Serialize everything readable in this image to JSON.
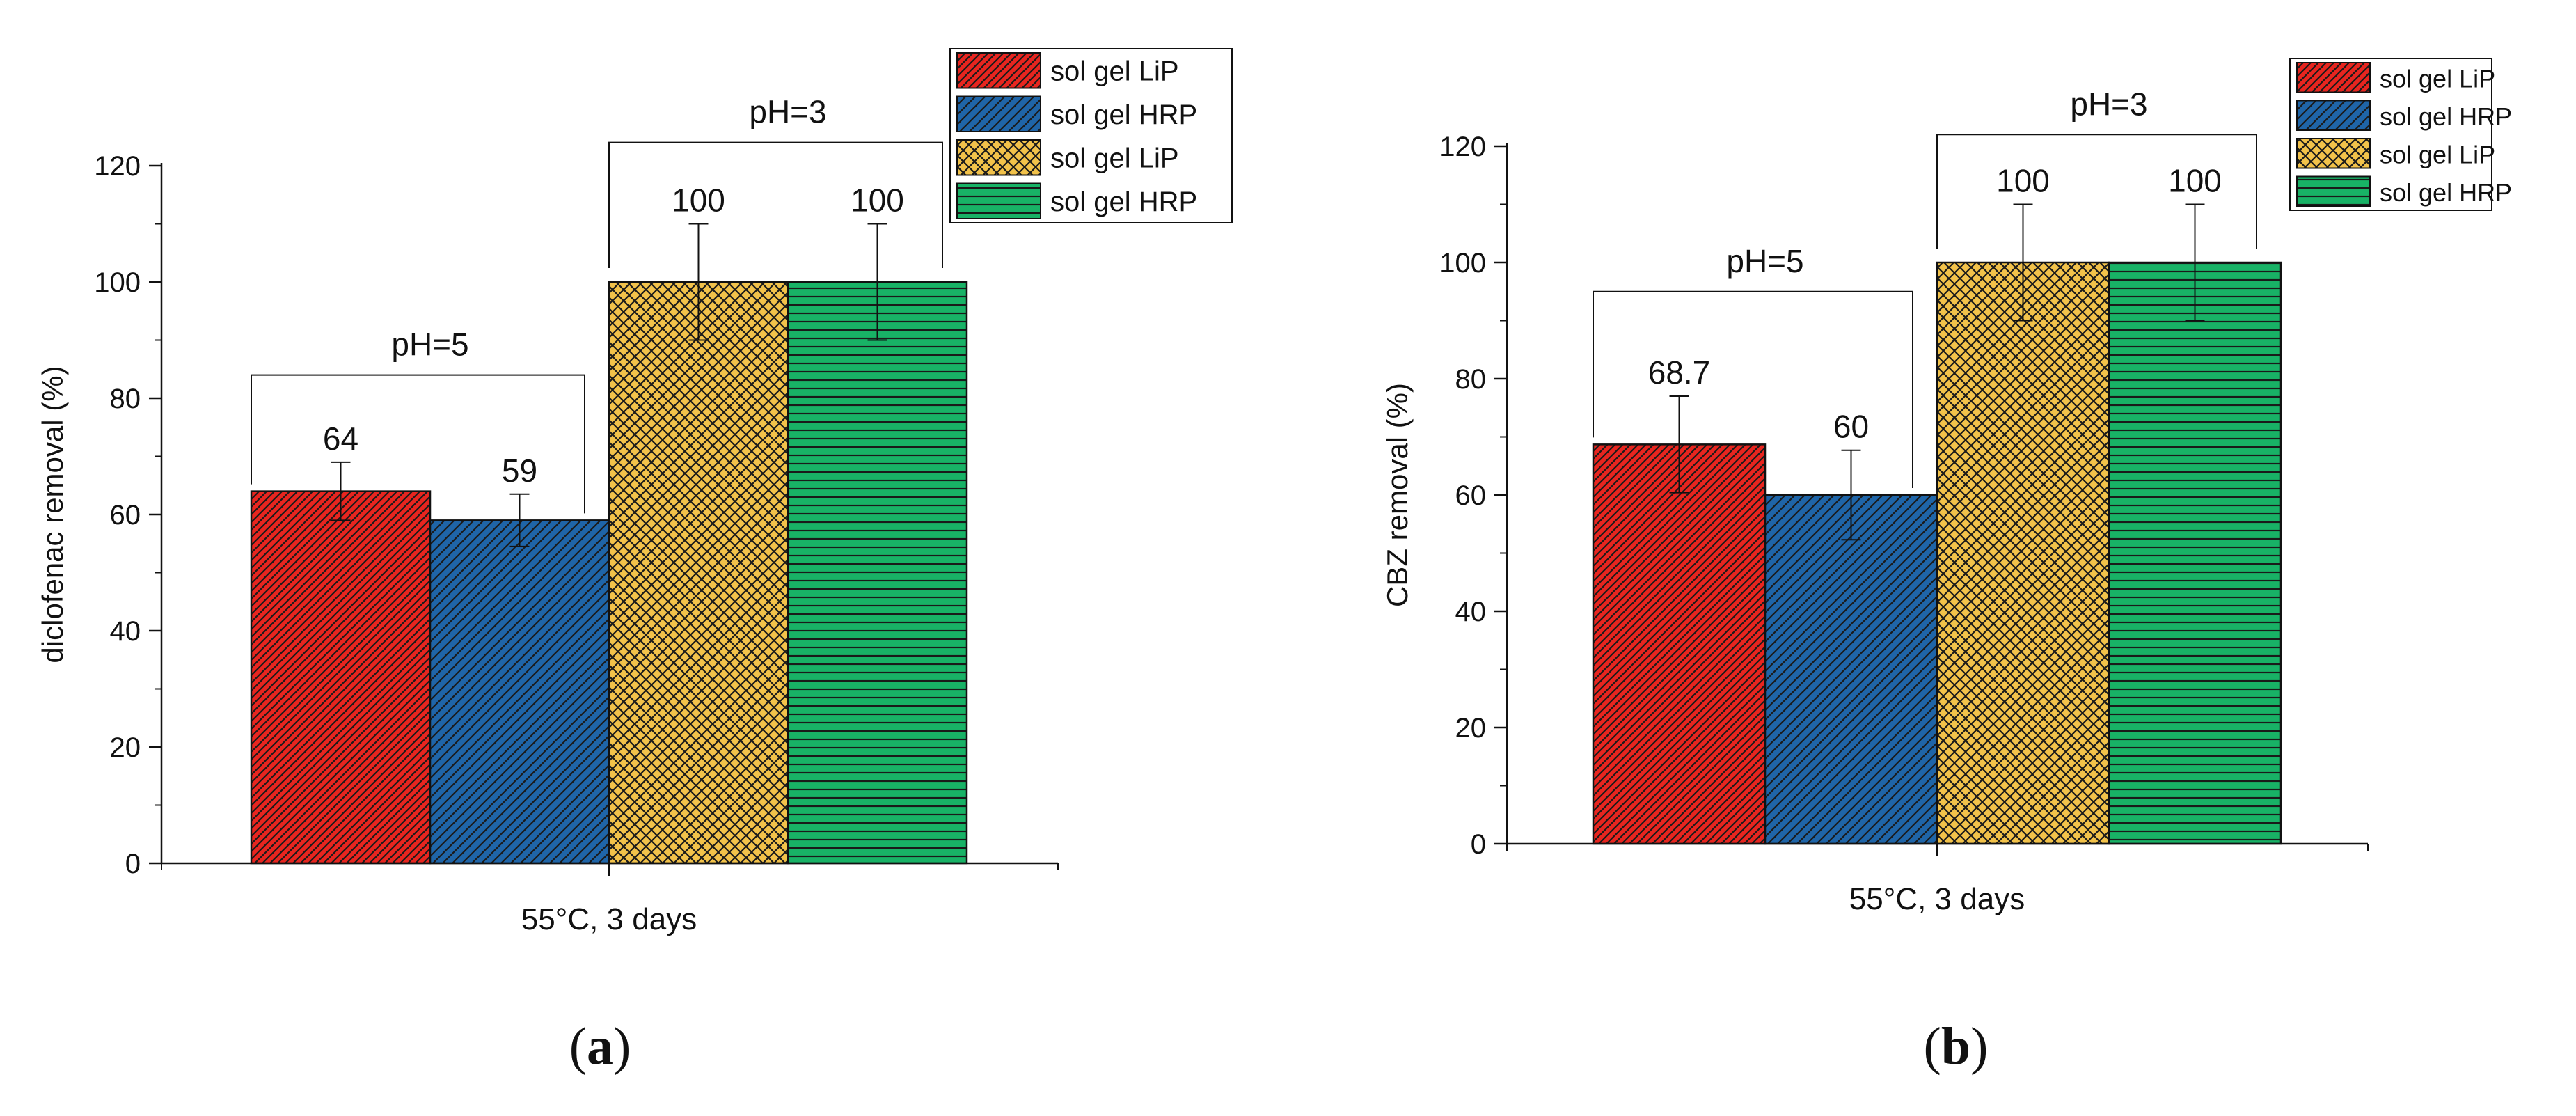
{
  "figure": {
    "panel_labels": [
      "(a)",
      "(b)"
    ],
    "panel_label_parts": [
      {
        "open": "(",
        "letter": "a",
        "close": ")"
      },
      {
        "open": "(",
        "letter": "b",
        "close": ")"
      }
    ]
  },
  "colors": {
    "red": "#e8251f",
    "blue": "#1f65a8",
    "gold": "#f2c24a",
    "green": "#18b266",
    "stroke": "#111111"
  },
  "chart_data": [
    {
      "type": "bar",
      "panel": "a",
      "title": "",
      "xlabel": "55°C, 3 days",
      "ylabel": "diclofenac removal (%)",
      "ylim": [
        0,
        120
      ],
      "yticks": [
        0,
        20,
        40,
        60,
        80,
        100,
        120
      ],
      "ytick_labels": [
        "0",
        "20",
        "40",
        "60",
        "80",
        "100",
        "120"
      ],
      "grid": false,
      "legend_position": "top-right",
      "series": [
        {
          "name": "sol gel LiP",
          "condition": "pH=5",
          "value": 64,
          "label": "64",
          "error": 5,
          "color": "#e8251f",
          "pattern": "diag-dense"
        },
        {
          "name": "sol gel HRP",
          "condition": "pH=5",
          "value": 59,
          "label": "59",
          "error": 4.5,
          "color": "#1f65a8",
          "pattern": "diag"
        },
        {
          "name": "sol gel LiP",
          "condition": "pH=3",
          "value": 100,
          "label": "100",
          "error": 10,
          "color": "#f2c24a",
          "pattern": "cross"
        },
        {
          "name": "sol gel HRP",
          "condition": "pH=3",
          "value": 100,
          "label": "100",
          "error": 10,
          "color": "#18b266",
          "pattern": "horiz"
        }
      ],
      "brackets": [
        {
          "label": "pH=5",
          "from": 0,
          "to": 1,
          "level": 84
        },
        {
          "label": "pH=3",
          "from": 2,
          "to": 3,
          "level": 124
        }
      ]
    },
    {
      "type": "bar",
      "panel": "b",
      "title": "",
      "xlabel": "55°C, 3 days",
      "ylabel": "CBZ removal (%)",
      "ylim": [
        0,
        120
      ],
      "yticks": [
        0,
        20,
        40,
        60,
        80,
        100,
        120
      ],
      "ytick_labels": [
        "0",
        "20",
        "40",
        "60",
        "80",
        "100",
        "120"
      ],
      "grid": false,
      "legend_position": "top-right",
      "series": [
        {
          "name": "sol gel LiP",
          "condition": "pH=5",
          "value": 68.7,
          "label": "68.7",
          "error": 8.3,
          "color": "#e8251f",
          "pattern": "diag-dense"
        },
        {
          "name": "sol gel HRP",
          "condition": "pH=5",
          "value": 60,
          "label": "60",
          "error": 7.7,
          "color": "#1f65a8",
          "pattern": "diag"
        },
        {
          "name": "sol gel LiP",
          "condition": "pH=3",
          "value": 100,
          "label": "100",
          "error": 10,
          "color": "#f2c24a",
          "pattern": "cross"
        },
        {
          "name": "sol gel HRP",
          "condition": "pH=3",
          "value": 100,
          "label": "100",
          "error": 10,
          "color": "#18b266",
          "pattern": "horiz"
        }
      ],
      "brackets": [
        {
          "label": "pH=5",
          "from": 0,
          "to": 1,
          "level": 95
        },
        {
          "label": "pH=3",
          "from": 2,
          "to": 3,
          "level": 122
        }
      ]
    }
  ]
}
